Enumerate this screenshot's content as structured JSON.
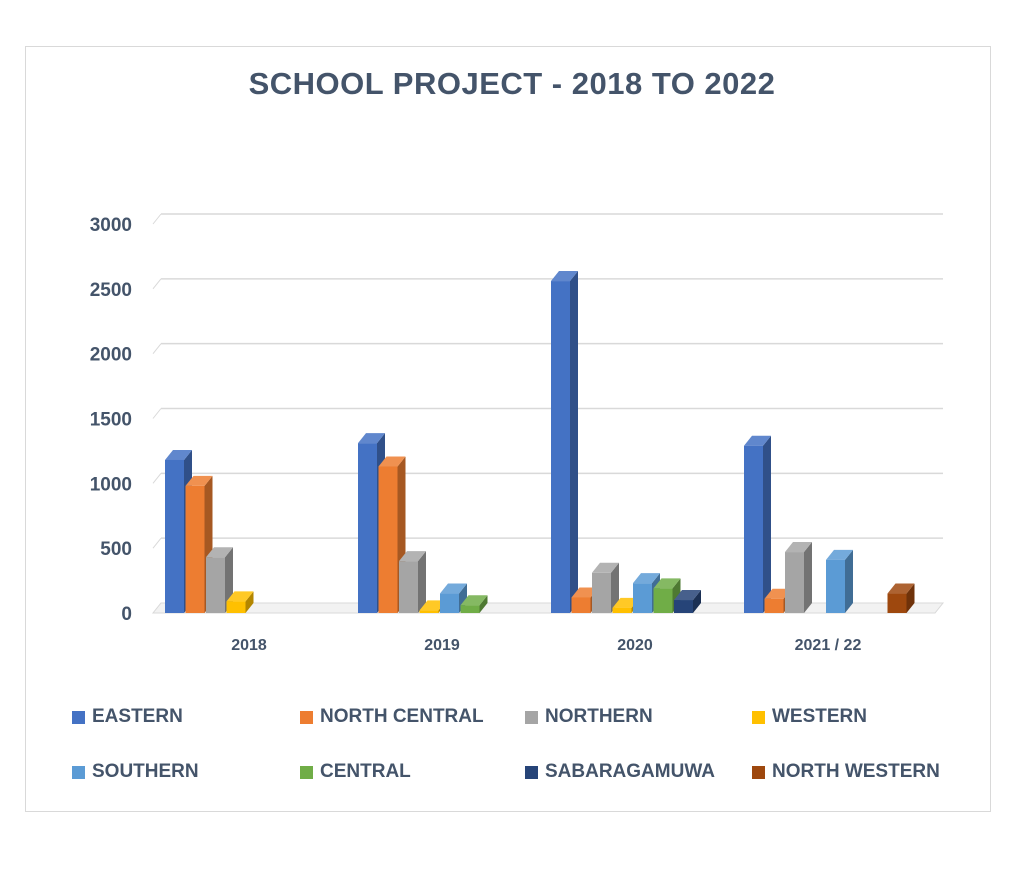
{
  "chart_data": {
    "type": "bar",
    "title": "SCHOOL PROJECT - 2018 TO 2022",
    "xlabel": "",
    "ylabel": "",
    "ylim": [
      0,
      3000
    ],
    "yticks": [
      "0",
      "500",
      "1000",
      "1500",
      "2000",
      "2500",
      "3000"
    ],
    "categories": [
      "2018",
      "2019",
      "2020",
      "2021 / 22"
    ],
    "series": [
      {
        "name": "EASTERN",
        "color": "#4472c4",
        "values": [
          1180,
          1310,
          2560,
          1290
        ]
      },
      {
        "name": "NORTH CENTRAL",
        "color": "#ed7d31",
        "values": [
          980,
          1130,
          120,
          110
        ]
      },
      {
        "name": "NORTHERN",
        "color": "#a5a5a5",
        "values": [
          430,
          400,
          310,
          470
        ]
      },
      {
        "name": "WESTERN",
        "color": "#ffc000",
        "values": [
          90,
          20,
          40,
          0
        ]
      },
      {
        "name": "SOUTHERN",
        "color": "#5b9bd5",
        "values": [
          0,
          150,
          230,
          410
        ]
      },
      {
        "name": "CENTRAL",
        "color": "#70ad47",
        "values": [
          0,
          60,
          190,
          0
        ]
      },
      {
        "name": "SABARAGAMUWA",
        "color": "#264478",
        "values": [
          0,
          0,
          100,
          0
        ]
      },
      {
        "name": "NORTH WESTERN",
        "color": "#9e480e",
        "values": [
          0,
          0,
          0,
          150
        ]
      }
    ],
    "grid": true,
    "legend": "bottom",
    "style": "3d-clustered-column"
  }
}
